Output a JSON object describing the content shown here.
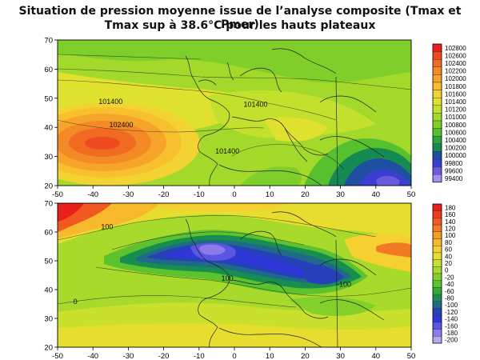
{
  "figure": {
    "title_line1": "Situation de pression moyenne issue de l’analyse composite (Tmax et Pmer)",
    "title_line2": "Tmax sup à 38.6°C pour les hauts plateaux"
  },
  "axes": {
    "x_ticks": [
      "-50",
      "-40",
      "-30",
      "-20",
      "-10",
      "0",
      "10",
      "20",
      "30",
      "40",
      "50"
    ],
    "y_ticks": [
      "20",
      "30",
      "40",
      "50",
      "60",
      "70"
    ],
    "xlim": [
      -50,
      50
    ],
    "ylim": [
      20,
      70
    ]
  },
  "top_map": {
    "variable": "mean sea level pressure (Pmer)",
    "legend": {
      "labels": [
        "102800",
        "102600",
        "102400",
        "102200",
        "102000",
        "101800",
        "101600",
        "101400",
        "101200",
        "101000",
        "100800",
        "100600",
        "100400",
        "100200",
        "100000",
        "99800",
        "99600",
        "99400"
      ],
      "colors": [
        "#e8201c",
        "#ee4a1e",
        "#f16a22",
        "#f48a26",
        "#f7a52a",
        "#f9c02e",
        "#f3d331",
        "#dfe12e",
        "#c3e02c",
        "#a3d92a",
        "#7fce2a",
        "#56c02e",
        "#2aa63a",
        "#158a52",
        "#1f4fa0",
        "#3a3fcf",
        "#6a5ae0",
        "#a58ef0"
      ]
    },
    "contour_labels": [
      {
        "text": "101400",
        "lon": -35,
        "lat": 48
      },
      {
        "text": "102400",
        "lon": -32,
        "lat": 40
      },
      {
        "text": "101400",
        "lon": 6,
        "lat": 47
      },
      {
        "text": "101400",
        "lon": -2,
        "lat": 31
      }
    ]
  },
  "bottom_map": {
    "variable": "geopotential / anomaly",
    "legend": {
      "labels": [
        "180",
        "160",
        "140",
        "120",
        "100",
        "80",
        "60",
        "40",
        "20",
        "0",
        "-20",
        "-40",
        "-60",
        "-80",
        "-100",
        "-120",
        "-140",
        "-160",
        "-180",
        "-200"
      ],
      "colors": [
        "#e8201c",
        "#ec3a1d",
        "#f05a20",
        "#f37a24",
        "#f69a28",
        "#f8b82c",
        "#f6cf30",
        "#e6dd2f",
        "#c9e02d",
        "#a8da2b",
        "#84d02a",
        "#5cc22e",
        "#30aa3a",
        "#178e50",
        "#1f6a88",
        "#2540b8",
        "#2f38d6",
        "#5a55e2",
        "#8c7aea",
        "#b9a6f2"
      ]
    },
    "contour_labels": [
      {
        "text": "100",
        "lon": -36,
        "lat": 61
      },
      {
        "text": "100",
        "lon": -2,
        "lat": 43
      },
      {
        "text": "0",
        "lon": -45,
        "lat": 35
      },
      {
        "text": "-100",
        "lon": 31,
        "lat": 41
      }
    ]
  }
}
